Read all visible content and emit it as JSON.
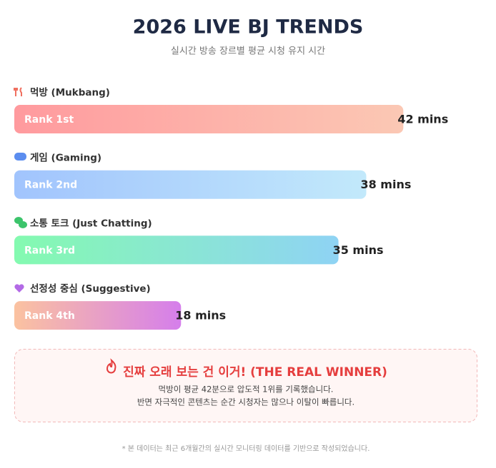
{
  "chart_data": {
    "type": "bar",
    "title": "2026 LIVE BJ TRENDS",
    "subtitle": "실시간 방송 장르별 평균 시청 유지 시간",
    "categories": [
      "먹방 (Mukbang)",
      "게임 (Gaming)",
      "소통 토크 (Just Chatting)",
      "선정성 중심 (Suggestive)"
    ],
    "rank_labels": [
      "Rank 1st",
      "Rank 2nd",
      "Rank 3rd",
      "Rank 4th"
    ],
    "values": [
      42,
      38,
      35,
      18
    ],
    "value_labels": [
      "42 mins",
      "38 mins",
      "35 mins",
      "18 mins"
    ],
    "colors": [
      [
        "#ff9a9e",
        "#fbc8b4"
      ],
      [
        "#a1c4fd",
        "#c2e9fb"
      ],
      [
        "#84fab0",
        "#8fd3f4"
      ],
      [
        "#fbc2a0",
        "#d57eeb"
      ]
    ],
    "xlim": [
      0,
      50
    ]
  },
  "callout": {
    "title": "진짜 오래 보는 건 이거! (THE REAL WINNER)",
    "lines": [
      "먹방이 평균 42분으로 압도적 1위를 기록했습니다.",
      "반면 자극적인 콘텐츠는 순간 시청자는 많으나 이탈이 빠릅니다."
    ]
  },
  "footnote": "* 본 데이터는 최근 6개월간의 실시간 모니터링 데이터를 기반으로 작성되었습니다."
}
